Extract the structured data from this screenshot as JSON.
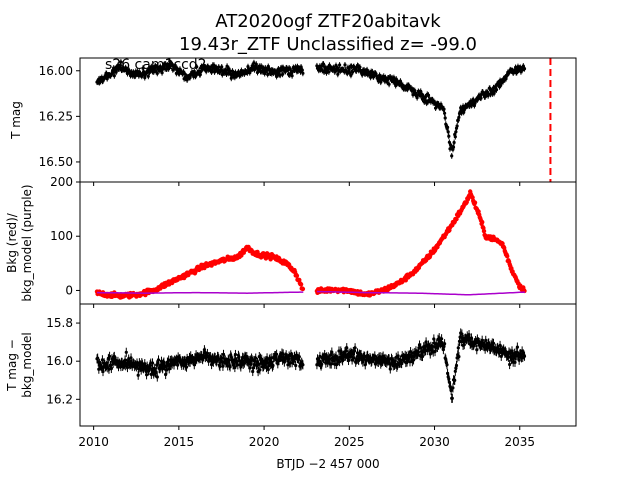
{
  "chart_data": {
    "title_line1": "AT2020ogf  ZTF20abitavk",
    "title_line2": "19.43r_ZTF Unclassified z= -99.0",
    "annotation": "s26 cam1ccd2",
    "xlabel": "BTJD −2 457 000",
    "xlim": [
      2009.2,
      2038.3
    ],
    "xticks": [
      2010,
      2015,
      2020,
      2025,
      2030,
      2035
    ],
    "marker_line": {
      "x": 2036.8,
      "color": "#ff0000",
      "style": "dashed"
    },
    "panels": [
      {
        "id": "top",
        "type": "scatter",
        "ylabel": "T mag",
        "ylim": [
          16.61,
          15.93
        ],
        "inverted": true,
        "yticks": [
          16.0,
          16.25,
          16.5
        ],
        "ytick_labels": [
          "16.00",
          "16.25",
          "16.50"
        ],
        "series": [
          {
            "color": "#000000",
            "error_bars": true,
            "segments": [
              [
                2010.2,
                2022.3
              ],
              [
                2023.1,
                2035.3
              ]
            ],
            "x": [
              2010.5,
              2011.5,
              2012.5,
              2013.5,
              2014.5,
              2015.5,
              2016.5,
              2017.5,
              2018.5,
              2019.5,
              2020.5,
              2021.5,
              2022.2,
              2023.3,
              2024.5,
              2025.5,
              2026.5,
              2027.5,
              2028.5,
              2029.5,
              2030.5,
              2031.0,
              2031.5,
              2032.5,
              2033.5,
              2034.5,
              2035.2
            ],
            "y": [
              16.05,
              15.98,
              16.02,
              16.0,
              15.97,
              16.03,
              15.99,
              16.0,
              16.02,
              15.98,
              16.01,
              16.0,
              15.99,
              15.98,
              16.0,
              15.99,
              16.03,
              16.05,
              16.1,
              16.15,
              16.2,
              16.45,
              16.22,
              16.15,
              16.1,
              16.0,
              15.98
            ],
            "scatter": 0.04
          }
        ]
      },
      {
        "id": "middle",
        "type": "line",
        "ylabel_line1": "Bkg (red)/",
        "ylabel_line2": "bkg_model (purple)",
        "ylim": [
          -25,
          200
        ],
        "yticks": [
          0,
          100,
          200
        ],
        "series": [
          {
            "color": "#ff0000",
            "style": "points",
            "segments": [
              [
                2010.2,
                2022.3
              ],
              [
                2023.1,
                2035.3
              ]
            ],
            "x": [
              2010.2,
              2011.5,
              2012.5,
              2013.5,
              2014.5,
              2015.5,
              2016.5,
              2017.5,
              2018.5,
              2019.0,
              2019.5,
              2020.5,
              2021.3,
              2021.8,
              2022.3,
              2023.1,
              2024.0,
              2025.0,
              2026.0,
              2027.0,
              2028.0,
              2029.0,
              2030.0,
              2031.0,
              2031.8,
              2032.1,
              2032.6,
              2033.0,
              2033.5,
              2034.0,
              2034.5,
              2035.0,
              2035.3
            ],
            "y": [
              -5,
              -10,
              -8,
              0,
              15,
              30,
              45,
              55,
              62,
              80,
              68,
              62,
              50,
              35,
              0,
              -2,
              2,
              0,
              -8,
              0,
              15,
              40,
              75,
              120,
              160,
              180,
              140,
              100,
              95,
              85,
              40,
              8,
              0
            ],
            "scatter": 7
          },
          {
            "color": "#aa00cc",
            "style": "line",
            "segments": [
              [
                2010.2,
                2022.3
              ],
              [
                2023.1,
                2035.3
              ]
            ],
            "x": [
              2010.2,
              2013.0,
              2016.0,
              2019.0,
              2022.3,
              2023.1,
              2026.0,
              2029.0,
              2032.0,
              2034.0,
              2035.3
            ],
            "y": [
              -4,
              -5,
              -4,
              -5,
              -3,
              -2,
              -4,
              -5,
              -8,
              -5,
              -3
            ],
            "scatter": 0
          }
        ]
      },
      {
        "id": "bottom",
        "type": "scatter",
        "ylabel_line1": "T mag −",
        "ylabel_line2": "bkg_model",
        "ylim": [
          16.34,
          15.7
        ],
        "inverted": true,
        "yticks": [
          15.8,
          16.0,
          16.2
        ],
        "ytick_labels": [
          "15.8",
          "16.0",
          "16.2"
        ],
        "series": [
          {
            "color": "#000000",
            "error_bars": true,
            "segments": [
              [
                2010.2,
                2022.3
              ],
              [
                2023.1,
                2035.3
              ]
            ],
            "x": [
              2010.5,
              2012.0,
              2013.5,
              2015.0,
              2016.5,
              2018.0,
              2019.5,
              2021.0,
              2022.2,
              2023.3,
              2025.0,
              2026.5,
              2028.0,
              2029.5,
              2030.5,
              2031.0,
              2031.5,
              2032.5,
              2033.5,
              2034.5,
              2035.2
            ],
            "y": [
              16.02,
              16.0,
              16.05,
              16.0,
              15.98,
              16.0,
              16.02,
              15.99,
              16.0,
              16.0,
              15.97,
              15.99,
              16.0,
              15.93,
              15.9,
              16.2,
              15.88,
              15.9,
              15.93,
              15.97,
              15.98
            ],
            "scatter": 0.06
          }
        ]
      }
    ]
  }
}
